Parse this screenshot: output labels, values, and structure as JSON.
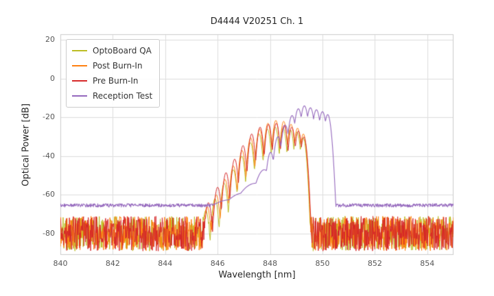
{
  "chart_data": {
    "type": "line",
    "title": "D4444 V20251 Ch. 1",
    "xlabel": "Wavelength [nm]",
    "ylabel": "Optical Power [dB]",
    "xlim": [
      840,
      855
    ],
    "ylim": [
      -91,
      23
    ],
    "xticks": [
      840,
      842,
      844,
      846,
      848,
      850,
      852,
      854
    ],
    "yticks": [
      20,
      0,
      -20,
      -40,
      -60,
      -80
    ],
    "grid": true,
    "grid_color": "#dddddd",
    "plot_border_color": "#cccccc",
    "legend_position": "upper left",
    "series": [
      {
        "name": "OptoBoard QA",
        "color": "#bcbd22",
        "noise_floor_db": -80,
        "noise_amplitude_db": 9,
        "mode_width_nm": 0.04,
        "modes": [
          [
            845.55,
            -68
          ],
          [
            845.9,
            -62
          ],
          [
            846.25,
            -54
          ],
          [
            846.6,
            -47
          ],
          [
            846.92,
            -40
          ],
          [
            847.25,
            -33
          ],
          [
            847.58,
            -28.5
          ],
          [
            847.9,
            -26
          ],
          [
            848.2,
            -25
          ],
          [
            848.5,
            -25.5
          ],
          [
            848.78,
            -26.5
          ],
          [
            849.03,
            -27.5
          ],
          [
            849.26,
            -30.5
          ]
        ]
      },
      {
        "name": "Post Burn-In",
        "color": "#ff7f0e",
        "noise_floor_db": -80,
        "noise_amplitude_db": 9,
        "mode_width_nm": 0.04,
        "modes": [
          [
            845.6,
            -66
          ],
          [
            845.95,
            -60
          ],
          [
            846.28,
            -52
          ],
          [
            846.6,
            -45
          ],
          [
            846.93,
            -37
          ],
          [
            847.26,
            -30.5
          ],
          [
            847.6,
            -26
          ],
          [
            847.92,
            -23
          ],
          [
            848.22,
            -21.5
          ],
          [
            848.52,
            -22
          ],
          [
            848.8,
            -23.5
          ],
          [
            849.05,
            -25.5
          ],
          [
            849.27,
            -28.5
          ]
        ]
      },
      {
        "name": "Pre Burn-In",
        "color": "#d62728",
        "noise_floor_db": -80,
        "noise_amplitude_db": 9,
        "mode_width_nm": 0.04,
        "modes": [
          [
            845.65,
            -64
          ],
          [
            846.0,
            -56
          ],
          [
            846.32,
            -48.5
          ],
          [
            846.65,
            -41.5
          ],
          [
            846.97,
            -34.5
          ],
          [
            847.3,
            -28.5
          ],
          [
            847.62,
            -25
          ],
          [
            847.94,
            -23.5
          ],
          [
            848.24,
            -23
          ],
          [
            848.54,
            -24
          ],
          [
            848.83,
            -25
          ],
          [
            849.08,
            -27
          ],
          [
            849.29,
            -30
          ]
        ]
      },
      {
        "name": "Reception Test",
        "color": "#9467bd",
        "noise_floor_db": -65.4,
        "noise_amplitude_db": 0.9,
        "mode_width_nm": 0.05,
        "modes": [
          [
            846.5,
            -62.5,
            0.4
          ],
          [
            847.0,
            -59,
            0.3
          ],
          [
            847.45,
            -54,
            0.25
          ],
          [
            847.78,
            -47,
            0.12
          ],
          [
            848.02,
            -38
          ],
          [
            848.3,
            -30
          ],
          [
            848.58,
            -24
          ],
          [
            848.84,
            -19
          ],
          [
            849.08,
            -15.5
          ],
          [
            849.31,
            -14
          ],
          [
            849.54,
            -15
          ],
          [
            849.77,
            -16
          ],
          [
            850.0,
            -17
          ],
          [
            850.2,
            -18.5,
            0.045
          ]
        ]
      }
    ]
  }
}
